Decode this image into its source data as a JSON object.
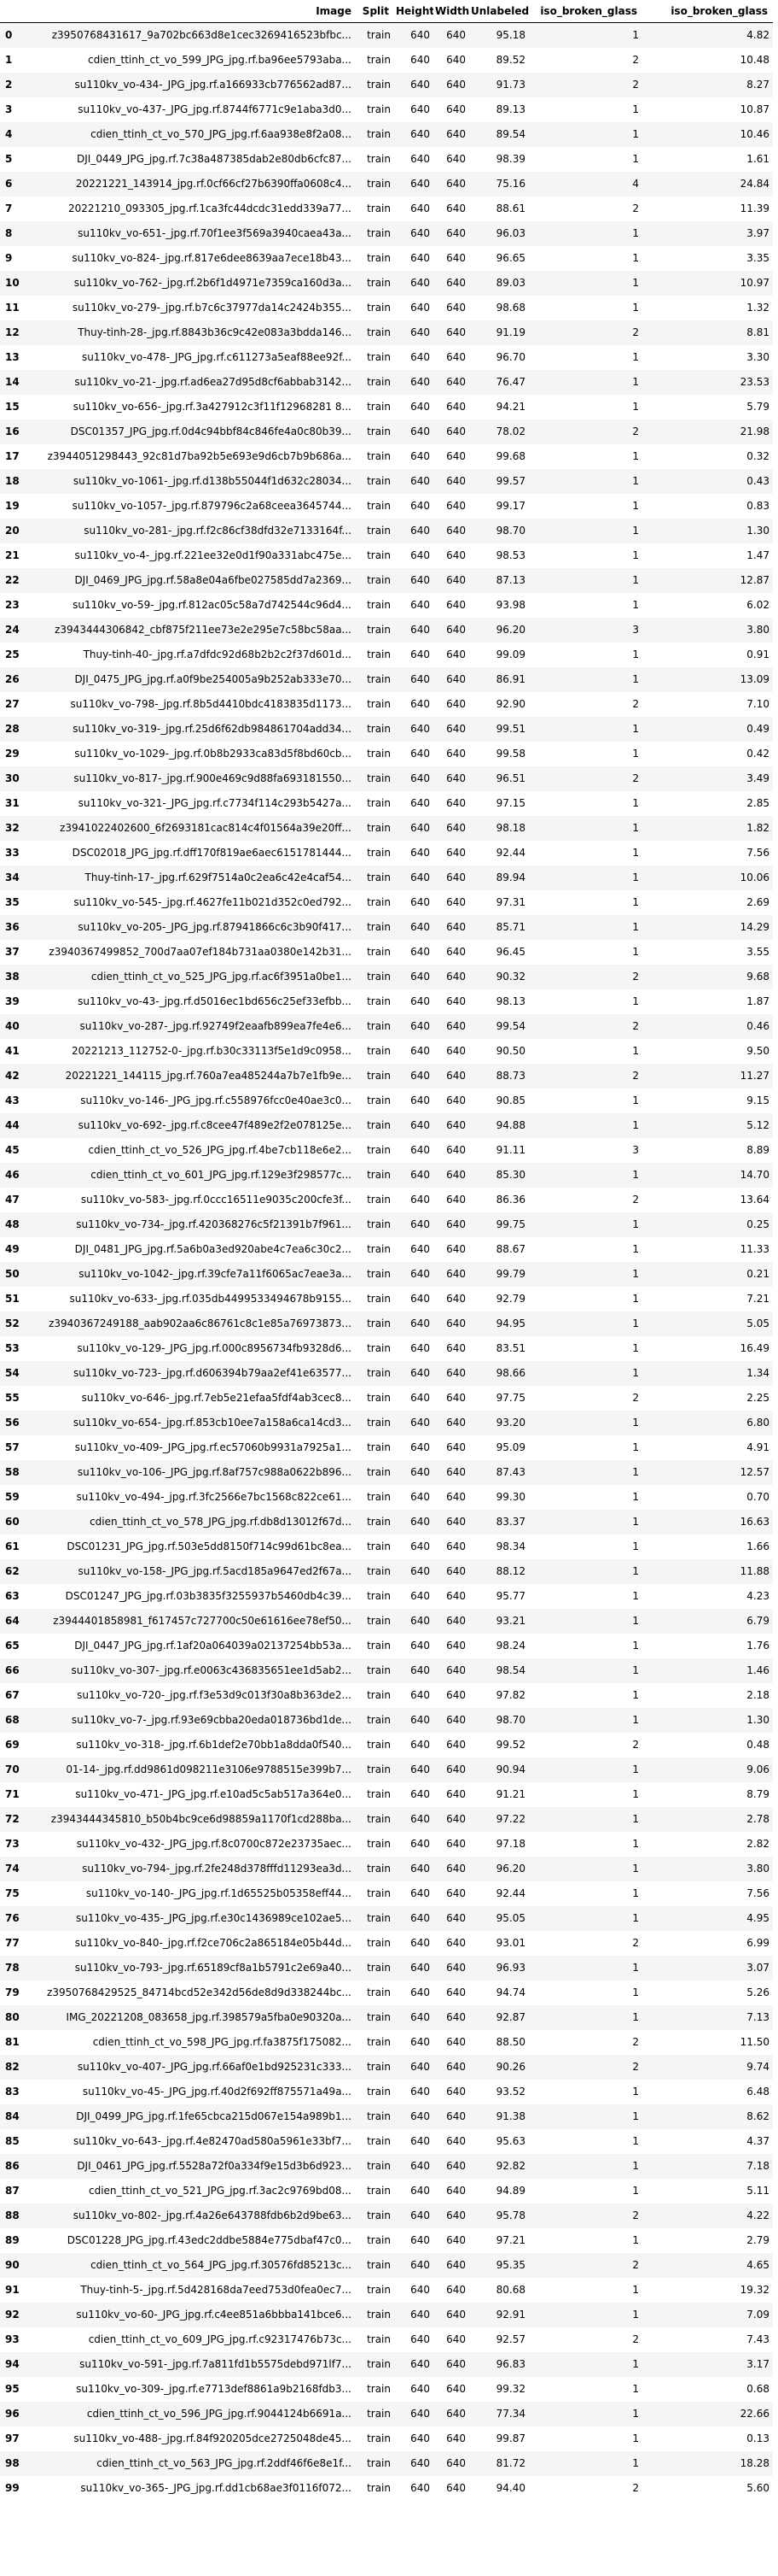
{
  "table": {
    "columns": [
      "",
      "Image",
      "Split",
      "Height",
      "Width",
      "Unlabeled",
      "iso_broken_glass",
      "iso_broken_glass"
    ],
    "rows": [
      [
        "0",
        "z3950768431617_9a702bc663d8e1cec3269416523bfbc...",
        "train",
        "640",
        "640",
        "95.18",
        "1",
        "4.82"
      ],
      [
        "1",
        "cdien_ttinh_ct_vo_599_JPG_jpg.rf.ba96ee5793aba...",
        "train",
        "640",
        "640",
        "89.52",
        "2",
        "10.48"
      ],
      [
        "2",
        "su110kv_vo-434-_JPG_jpg.rf.a166933cb776562ad87...",
        "train",
        "640",
        "640",
        "91.73",
        "2",
        "8.27"
      ],
      [
        "3",
        "su110kv_vo-437-_JPG_jpg.rf.8744f6771c9e1aba3d0...",
        "train",
        "640",
        "640",
        "89.13",
        "1",
        "10.87"
      ],
      [
        "4",
        "cdien_ttinh_ct_vo_570_JPG_jpg.rf.6aa938e8f2a08...",
        "train",
        "640",
        "640",
        "89.54",
        "1",
        "10.46"
      ],
      [
        "5",
        "DJI_0449_JPG_jpg.rf.7c38a487385dab2e80db6cfc87...",
        "train",
        "640",
        "640",
        "98.39",
        "1",
        "1.61"
      ],
      [
        "6",
        "20221221_143914_jpg.rf.0cf66cf27b6390ffa0608c4...",
        "train",
        "640",
        "640",
        "75.16",
        "4",
        "24.84"
      ],
      [
        "7",
        "20221210_093305_jpg.rf.1ca3fc44dcdc31edd339a77...",
        "train",
        "640",
        "640",
        "88.61",
        "2",
        "11.39"
      ],
      [
        "8",
        "su110kv_vo-651-_jpg.rf.70f1ee3f569a3940caea43a...",
        "train",
        "640",
        "640",
        "96.03",
        "1",
        "3.97"
      ],
      [
        "9",
        "su110kv_vo-824-_jpg.rf.817e6dee8639aa7ece18b43...",
        "train",
        "640",
        "640",
        "96.65",
        "1",
        "3.35"
      ],
      [
        "10",
        "su110kv_vo-762-_jpg.rf.2b6f1d4971e7359ca160d3a...",
        "train",
        "640",
        "640",
        "89.03",
        "1",
        "10.97"
      ],
      [
        "11",
        "su110kv_vo-279-_jpg.rf.b7c6c37977da14c2424b355...",
        "train",
        "640",
        "640",
        "98.68",
        "1",
        "1.32"
      ],
      [
        "12",
        "Thuy-tinh-28-_jpg.rf.8843b36c9c42e083a3bdda146...",
        "train",
        "640",
        "640",
        "91.19",
        "2",
        "8.81"
      ],
      [
        "13",
        "su110kv_vo-478-_JPG_jpg.rf.c611273a5eaf88ee92f...",
        "train",
        "640",
        "640",
        "96.70",
        "1",
        "3.30"
      ],
      [
        "14",
        "su110kv_vo-21-_jpg.rf.ad6ea27d95d8cf6abbab3142...",
        "train",
        "640",
        "640",
        "76.47",
        "1",
        "23.53"
      ],
      [
        "15",
        "su110kv_vo-656-_jpg.rf.3a427912c3f11f12968281 8...",
        "train",
        "640",
        "640",
        "94.21",
        "1",
        "5.79"
      ],
      [
        "16",
        "DSC01357_JPG_jpg.rf.0d4c94bbf84c846fe4a0c80b39...",
        "train",
        "640",
        "640",
        "78.02",
        "2",
        "21.98"
      ],
      [
        "17",
        "z3944051298443_92c81d7ba92b5e693e9d6cb7b9b686a...",
        "train",
        "640",
        "640",
        "99.68",
        "1",
        "0.32"
      ],
      [
        "18",
        "su110kv_vo-1061-_jpg.rf.d138b55044f1d632c28034...",
        "train",
        "640",
        "640",
        "99.57",
        "1",
        "0.43"
      ],
      [
        "19",
        "su110kv_vo-1057-_jpg.rf.879796c2a68ceea3645744...",
        "train",
        "640",
        "640",
        "99.17",
        "1",
        "0.83"
      ],
      [
        "20",
        "su110kv_vo-281-_jpg.rf.f2c86cf38dfd32e7133164f...",
        "train",
        "640",
        "640",
        "98.70",
        "1",
        "1.30"
      ],
      [
        "21",
        "su110kv_vo-4-_jpg.rf.221ee32e0d1f90a331abc475e...",
        "train",
        "640",
        "640",
        "98.53",
        "1",
        "1.47"
      ],
      [
        "22",
        "DJI_0469_JPG_jpg.rf.58a8e04a6fbe027585dd7a2369...",
        "train",
        "640",
        "640",
        "87.13",
        "1",
        "12.87"
      ],
      [
        "23",
        "su110kv_vo-59-_jpg.rf.812ac05c58a7d742544c96d4...",
        "train",
        "640",
        "640",
        "93.98",
        "1",
        "6.02"
      ],
      [
        "24",
        "z3943444306842_cbf875f211ee73e2e295e7c58bc58aa...",
        "train",
        "640",
        "640",
        "96.20",
        "3",
        "3.80"
      ],
      [
        "25",
        "Thuy-tinh-40-_jpg.rf.a7dfdc92d68b2b2c2f37d601d...",
        "train",
        "640",
        "640",
        "99.09",
        "1",
        "0.91"
      ],
      [
        "26",
        "DJI_0475_JPG_jpg.rf.a0f9be254005a9b252ab333e70...",
        "train",
        "640",
        "640",
        "86.91",
        "1",
        "13.09"
      ],
      [
        "27",
        "su110kv_vo-798-_jpg.rf.8b5d4410bdc4183835d1173...",
        "train",
        "640",
        "640",
        "92.90",
        "2",
        "7.10"
      ],
      [
        "28",
        "su110kv_vo-319-_jpg.rf.25d6f62db984861704add34...",
        "train",
        "640",
        "640",
        "99.51",
        "1",
        "0.49"
      ],
      [
        "29",
        "su110kv_vo-1029-_jpg.rf.0b8b2933ca83d5f8bd60cb...",
        "train",
        "640",
        "640",
        "99.58",
        "1",
        "0.42"
      ],
      [
        "30",
        "su110kv_vo-817-_jpg.rf.900e469c9d88fa693181550...",
        "train",
        "640",
        "640",
        "96.51",
        "2",
        "3.49"
      ],
      [
        "31",
        "su110kv_vo-321-_JPG_jpg.rf.c7734f114c293b5427a...",
        "train",
        "640",
        "640",
        "97.15",
        "1",
        "2.85"
      ],
      [
        "32",
        "z3941022402600_6f2693181cac814c4f01564a39e20ff...",
        "train",
        "640",
        "640",
        "98.18",
        "1",
        "1.82"
      ],
      [
        "33",
        "DSC02018_JPG_jpg.rf.dff170f819ae6aec6151781444...",
        "train",
        "640",
        "640",
        "92.44",
        "1",
        "7.56"
      ],
      [
        "34",
        "Thuy-tinh-17-_jpg.rf.629f7514a0c2ea6c42e4caf54...",
        "train",
        "640",
        "640",
        "89.94",
        "1",
        "10.06"
      ],
      [
        "35",
        "su110kv_vo-545-_jpg.rf.4627fe11b021d352c0ed792...",
        "train",
        "640",
        "640",
        "97.31",
        "1",
        "2.69"
      ],
      [
        "36",
        "su110kv_vo-205-_JPG_jpg.rf.87941866c6c3b90f417...",
        "train",
        "640",
        "640",
        "85.71",
        "1",
        "14.29"
      ],
      [
        "37",
        "z3940367499852_700d7aa07ef184b731aa0380e142b31...",
        "train",
        "640",
        "640",
        "96.45",
        "1",
        "3.55"
      ],
      [
        "38",
        "cdien_ttinh_ct_vo_525_JPG_jpg.rf.ac6f3951a0be1...",
        "train",
        "640",
        "640",
        "90.32",
        "2",
        "9.68"
      ],
      [
        "39",
        "su110kv_vo-43-_jpg.rf.d5016ec1bd656c25ef33efbb...",
        "train",
        "640",
        "640",
        "98.13",
        "1",
        "1.87"
      ],
      [
        "40",
        "su110kv_vo-287-_jpg.rf.92749f2eaafb899ea7fe4e6...",
        "train",
        "640",
        "640",
        "99.54",
        "2",
        "0.46"
      ],
      [
        "41",
        "20221213_112752-0-_jpg.rf.b30c33113f5e1d9c0958...",
        "train",
        "640",
        "640",
        "90.50",
        "1",
        "9.50"
      ],
      [
        "42",
        "20221221_144115_jpg.rf.760a7ea485244a7b7e1fb9e...",
        "train",
        "640",
        "640",
        "88.73",
        "2",
        "11.27"
      ],
      [
        "43",
        "su110kv_vo-146-_JPG_jpg.rf.c558976fcc0e40ae3c0...",
        "train",
        "640",
        "640",
        "90.85",
        "1",
        "9.15"
      ],
      [
        "44",
        "su110kv_vo-692-_jpg.rf.c8cee47f489e2f2e078125e...",
        "train",
        "640",
        "640",
        "94.88",
        "1",
        "5.12"
      ],
      [
        "45",
        "cdien_ttinh_ct_vo_526_JPG_jpg.rf.4be7cb118e6e2...",
        "train",
        "640",
        "640",
        "91.11",
        "3",
        "8.89"
      ],
      [
        "46",
        "cdien_ttinh_ct_vo_601_JPG_jpg.rf.129e3f298577c...",
        "train",
        "640",
        "640",
        "85.30",
        "1",
        "14.70"
      ],
      [
        "47",
        "su110kv_vo-583-_jpg.rf.0ccc16511e9035c200cfe3f...",
        "train",
        "640",
        "640",
        "86.36",
        "2",
        "13.64"
      ],
      [
        "48",
        "su110kv_vo-734-_jpg.rf.420368276c5f21391b7f961...",
        "train",
        "640",
        "640",
        "99.75",
        "1",
        "0.25"
      ],
      [
        "49",
        "DJI_0481_JPG_jpg.rf.5a6b0a3ed920abe4c7ea6c30c2...",
        "train",
        "640",
        "640",
        "88.67",
        "1",
        "11.33"
      ],
      [
        "50",
        "su110kv_vo-1042-_jpg.rf.39cfe7a11f6065ac7eae3a...",
        "train",
        "640",
        "640",
        "99.79",
        "1",
        "0.21"
      ],
      [
        "51",
        "su110kv_vo-633-_jpg.rf.035db4499533494678b9155...",
        "train",
        "640",
        "640",
        "92.79",
        "1",
        "7.21"
      ],
      [
        "52",
        "z3940367249188_aab902aa6c86761c8c1e85a76973873...",
        "train",
        "640",
        "640",
        "94.95",
        "1",
        "5.05"
      ],
      [
        "53",
        "su110kv_vo-129-_JPG_jpg.rf.000c8956734fb9328d6...",
        "train",
        "640",
        "640",
        "83.51",
        "1",
        "16.49"
      ],
      [
        "54",
        "su110kv_vo-723-_jpg.rf.d606394b79aa2ef41e63577...",
        "train",
        "640",
        "640",
        "98.66",
        "1",
        "1.34"
      ],
      [
        "55",
        "su110kv_vo-646-_jpg.rf.7eb5e21efaa5fdf4ab3cec8...",
        "train",
        "640",
        "640",
        "97.75",
        "2",
        "2.25"
      ],
      [
        "56",
        "su110kv_vo-654-_jpg.rf.853cb10ee7a158a6ca14cd3...",
        "train",
        "640",
        "640",
        "93.20",
        "1",
        "6.80"
      ],
      [
        "57",
        "su110kv_vo-409-_JPG_jpg.rf.ec57060b9931a7925a1...",
        "train",
        "640",
        "640",
        "95.09",
        "1",
        "4.91"
      ],
      [
        "58",
        "su110kv_vo-106-_JPG_jpg.rf.8af757c988a0622b896...",
        "train",
        "640",
        "640",
        "87.43",
        "1",
        "12.57"
      ],
      [
        "59",
        "su110kv_vo-494-_jpg.rf.3fc2566e7bc1568c822ce61...",
        "train",
        "640",
        "640",
        "99.30",
        "1",
        "0.70"
      ],
      [
        "60",
        "cdien_ttinh_ct_vo_578_JPG_jpg.rf.db8d13012f67d...",
        "train",
        "640",
        "640",
        "83.37",
        "1",
        "16.63"
      ],
      [
        "61",
        "DSC01231_JPG_jpg.rf.503e5dd8150f714c99d61bc8ea...",
        "train",
        "640",
        "640",
        "98.34",
        "1",
        "1.66"
      ],
      [
        "62",
        "su110kv_vo-158-_JPG_jpg.rf.5acd185a9647ed2f67a...",
        "train",
        "640",
        "640",
        "88.12",
        "1",
        "11.88"
      ],
      [
        "63",
        "DSC01247_JPG_jpg.rf.03b3835f3255937b5460db4c39...",
        "train",
        "640",
        "640",
        "95.77",
        "1",
        "4.23"
      ],
      [
        "64",
        "z3944401858981_f617457c727700c50e61616ee78ef50...",
        "train",
        "640",
        "640",
        "93.21",
        "1",
        "6.79"
      ],
      [
        "65",
        "DJI_0447_JPG_jpg.rf.1af20a064039a02137254bb53a...",
        "train",
        "640",
        "640",
        "98.24",
        "1",
        "1.76"
      ],
      [
        "66",
        "su110kv_vo-307-_jpg.rf.e0063c436835651ee1d5ab2...",
        "train",
        "640",
        "640",
        "98.54",
        "1",
        "1.46"
      ],
      [
        "67",
        "su110kv_vo-720-_jpg.rf.f3e53d9c013f30a8b363de2...",
        "train",
        "640",
        "640",
        "97.82",
        "1",
        "2.18"
      ],
      [
        "68",
        "su110kv_vo-7-_jpg.rf.93e69cbba20eda018736bd1de...",
        "train",
        "640",
        "640",
        "98.70",
        "1",
        "1.30"
      ],
      [
        "69",
        "su110kv_vo-318-_jpg.rf.6b1def2e70bb1a8dda0f540...",
        "train",
        "640",
        "640",
        "99.52",
        "2",
        "0.48"
      ],
      [
        "70",
        "01-14-_jpg.rf.dd9861d098211e3106e9788515e399b7...",
        "train",
        "640",
        "640",
        "90.94",
        "1",
        "9.06"
      ],
      [
        "71",
        "su110kv_vo-471-_JPG_jpg.rf.e10ad5c5ab517a364e0...",
        "train",
        "640",
        "640",
        "91.21",
        "1",
        "8.79"
      ],
      [
        "72",
        "z3943444345810_b50b4bc9ce6d98859a1170f1cd288ba...",
        "train",
        "640",
        "640",
        "97.22",
        "1",
        "2.78"
      ],
      [
        "73",
        "su110kv_vo-432-_JPG_jpg.rf.8c0700c872e23735aec...",
        "train",
        "640",
        "640",
        "97.18",
        "1",
        "2.82"
      ],
      [
        "74",
        "su110kv_vo-794-_jpg.rf.2fe248d378fffd11293ea3d...",
        "train",
        "640",
        "640",
        "96.20",
        "1",
        "3.80"
      ],
      [
        "75",
        "su110kv_vo-140-_JPG_jpg.rf.1d65525b05358eff44...",
        "train",
        "640",
        "640",
        "92.44",
        "1",
        "7.56"
      ],
      [
        "76",
        "su110kv_vo-435-_JPG_jpg.rf.e30c1436989ce102ae5...",
        "train",
        "640",
        "640",
        "95.05",
        "1",
        "4.95"
      ],
      [
        "77",
        "su110kv_vo-840-_jpg.rf.f2ce706c2a865184e05b44d...",
        "train",
        "640",
        "640",
        "93.01",
        "2",
        "6.99"
      ],
      [
        "78",
        "su110kv_vo-793-_jpg.rf.65189cf8a1b5791c2e69a40...",
        "train",
        "640",
        "640",
        "96.93",
        "1",
        "3.07"
      ],
      [
        "79",
        "z3950768429525_84714bcd52e342d56de8d9d338244bc...",
        "train",
        "640",
        "640",
        "94.74",
        "1",
        "5.26"
      ],
      [
        "80",
        "IMG_20221208_083658_jpg.rf.398579a5fba0e90320a...",
        "train",
        "640",
        "640",
        "92.87",
        "1",
        "7.13"
      ],
      [
        "81",
        "cdien_ttinh_ct_vo_598_JPG_jpg.rf.fa3875f175082...",
        "train",
        "640",
        "640",
        "88.50",
        "2",
        "11.50"
      ],
      [
        "82",
        "su110kv_vo-407-_JPG_jpg.rf.66af0e1bd925231c333...",
        "train",
        "640",
        "640",
        "90.26",
        "2",
        "9.74"
      ],
      [
        "83",
        "su110kv_vo-45-_JPG_jpg.rf.40d2f692ff875571a49a...",
        "train",
        "640",
        "640",
        "93.52",
        "1",
        "6.48"
      ],
      [
        "84",
        "DJI_0499_JPG_jpg.rf.1fe65cbca215d067e154a989b1...",
        "train",
        "640",
        "640",
        "91.38",
        "1",
        "8.62"
      ],
      [
        "85",
        "su110kv_vo-643-_jpg.rf.4e82470ad580a5961e33bf7...",
        "train",
        "640",
        "640",
        "95.63",
        "1",
        "4.37"
      ],
      [
        "86",
        "DJI_0461_JPG_jpg.rf.5528a72f0a334f9e15d3b6d923...",
        "train",
        "640",
        "640",
        "92.82",
        "1",
        "7.18"
      ],
      [
        "87",
        "cdien_ttinh_ct_vo_521_JPG_jpg.rf.3ac2c9769bd08...",
        "train",
        "640",
        "640",
        "94.89",
        "1",
        "5.11"
      ],
      [
        "88",
        "su110kv_vo-802-_jpg.rf.4a26e643788fdb6b2d9be63...",
        "train",
        "640",
        "640",
        "95.78",
        "2",
        "4.22"
      ],
      [
        "89",
        "DSC01228_JPG_jpg.rf.43edc2ddbe5884e775dbaf47c0...",
        "train",
        "640",
        "640",
        "97.21",
        "1",
        "2.79"
      ],
      [
        "90",
        "cdien_ttinh_ct_vo_564_JPG_jpg.rf.30576fd85213c...",
        "train",
        "640",
        "640",
        "95.35",
        "2",
        "4.65"
      ],
      [
        "91",
        "Thuy-tinh-5-_jpg.rf.5d428168da7eed753d0fea0ec7...",
        "train",
        "640",
        "640",
        "80.68",
        "1",
        "19.32"
      ],
      [
        "92",
        "su110kv_vo-60-_JPG_jpg.rf.c4ee851a6bbba141bce6...",
        "train",
        "640",
        "640",
        "92.91",
        "1",
        "7.09"
      ],
      [
        "93",
        "cdien_ttinh_ct_vo_609_JPG_jpg.rf.c92317476b73c...",
        "train",
        "640",
        "640",
        "92.57",
        "2",
        "7.43"
      ],
      [
        "94",
        "su110kv_vo-591-_jpg.rf.7a811fd1b5575debd971lf7...",
        "train",
        "640",
        "640",
        "96.83",
        "1",
        "3.17"
      ],
      [
        "95",
        "su110kv_vo-309-_jpg.rf.e7713def8861a9b2168fdb3...",
        "train",
        "640",
        "640",
        "99.32",
        "1",
        "0.68"
      ],
      [
        "96",
        "cdien_ttinh_ct_vo_596_JPG_jpg.rf.9044124b6691a...",
        "train",
        "640",
        "640",
        "77.34",
        "1",
        "22.66"
      ],
      [
        "97",
        "su110kv_vo-488-_jpg.rf.84f920205dce2725048de45...",
        "train",
        "640",
        "640",
        "99.87",
        "1",
        "0.13"
      ],
      [
        "98",
        "cdien_ttinh_ct_vo_563_JPG_jpg.rf.2ddf46f6e8e1f...",
        "train",
        "640",
        "640",
        "81.72",
        "1",
        "18.28"
      ],
      [
        "99",
        "su110kv_vo-365-_JPG_jpg.rf.dd1cb68ae3f0116f072...",
        "train",
        "640",
        "640",
        "94.40",
        "2",
        "5.60"
      ]
    ]
  }
}
